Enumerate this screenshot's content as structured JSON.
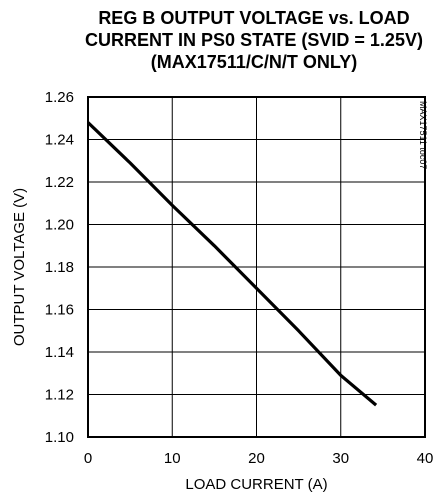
{
  "chart_data": {
    "type": "line",
    "title": [
      "REG B OUTPUT VOLTAGE vs. LOAD",
      "CURRENT IN PS0 STATE (SVID = 1.25V)",
      "(MAX17511/C/N/T ONLY)"
    ],
    "xlabel": "LOAD CURRENT (A)",
    "ylabel": "OUTPUT VOLTAGE (V)",
    "xlim": [
      0,
      40
    ],
    "ylim": [
      1.1,
      1.26
    ],
    "x_ticks": [
      0,
      10,
      20,
      30,
      40
    ],
    "y_ticks": [
      1.1,
      1.12,
      1.14,
      1.16,
      1.18,
      1.2,
      1.22,
      1.24,
      1.26
    ],
    "x_tick_labels": [
      "0",
      "10",
      "20",
      "30",
      "40"
    ],
    "y_tick_labels": [
      "1.10",
      "1.12",
      "1.14",
      "1.16",
      "1.18",
      "1.20",
      "1.22",
      "1.24",
      "1.26"
    ],
    "grid": true,
    "watermark": "MAX17511 toc07",
    "series": [
      {
        "x": [
          0,
          5,
          10,
          15,
          20,
          25,
          30,
          34.2
        ],
        "y": [
          1.248,
          1.229,
          1.209,
          1.19,
          1.17,
          1.15,
          1.129,
          1.115
        ]
      }
    ]
  }
}
